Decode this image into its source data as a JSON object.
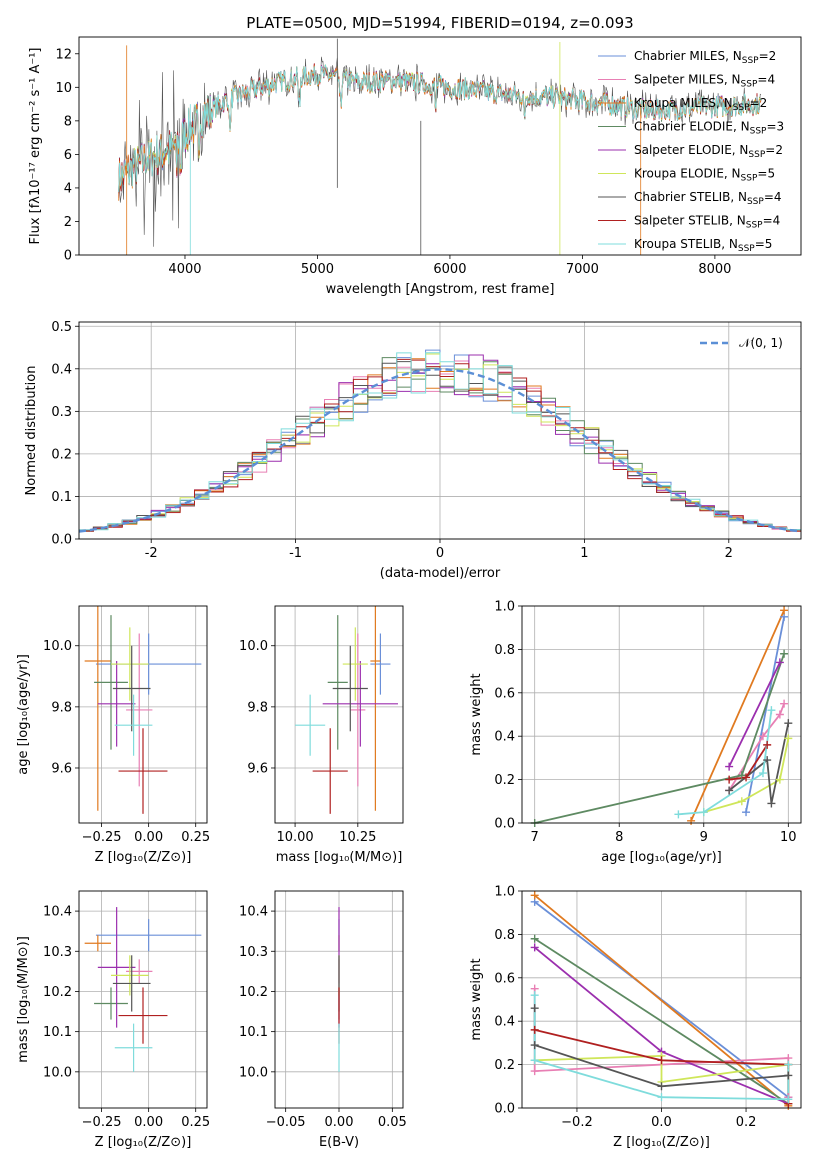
{
  "colors": {
    "Chabrier MILES": "#6a8fd8",
    "Salpeter MILES": "#e87fb4",
    "Kroupa MILES": "#e07a20",
    "Chabrier ELODIE": "#5e8a62",
    "Salpeter ELODIE": "#9b2fae",
    "Kroupa ELODIE": "#cfe65a",
    "Chabrier STELIB": "#555555",
    "Salpeter STELIB": "#b02020",
    "Kroupa STELIB": "#7fdcdc",
    "grid": "#b0b0b0",
    "normal_curve": "#5b8fd6"
  },
  "chart_data": [
    {
      "type": "line",
      "title": "PLATE=0500, MJD=51994, FIBERID=0194, z=0.093",
      "xlabel": "wavelength [Angstrom, rest frame]",
      "ylabel": "Flux [fλ10⁻¹⁷ erg cm⁻² s⁻¹ A⁻¹]",
      "xlim": [
        3200,
        8650
      ],
      "ylim": [
        0,
        13
      ],
      "xticks": [
        4000,
        5000,
        6000,
        7000,
        8000
      ],
      "yticks": [
        0,
        2,
        4,
        6,
        8,
        10,
        12
      ],
      "grid": false,
      "legend": "top-right",
      "continuum": {
        "x": [
          3500,
          3700,
          3900,
          4000,
          4100,
          4300,
          4500,
          4700,
          5000,
          5300,
          5600,
          6000,
          6400,
          6800,
          7200,
          7500,
          7900,
          8300
        ],
        "y": [
          4.6,
          5.7,
          6.3,
          7.2,
          8.0,
          9.2,
          9.8,
          10.3,
          10.8,
          10.3,
          10.4,
          10.0,
          9.6,
          9.4,
          9.0,
          8.6,
          8.8,
          9.0
        ]
      },
      "series": [
        {
          "name": "Chabrier MILES, N_SSP=2",
          "label": "Chabrier MILES, N",
          "sub": "SSP",
          "suffix": "=2"
        },
        {
          "name": "Salpeter MILES, N_SSP=4",
          "label": "Salpeter MILES, N",
          "sub": "SSP",
          "suffix": "=4"
        },
        {
          "name": "Kroupa MILES, N_SSP=2",
          "label": "Kroupa MILES, N",
          "sub": "SSP",
          "suffix": "=2"
        },
        {
          "name": "Chabrier ELODIE, N_SSP=3",
          "label": "Chabrier ELODIE, N",
          "sub": "SSP",
          "suffix": "=3"
        },
        {
          "name": "Salpeter ELODIE, N_SSP=2",
          "label": "Salpeter ELODIE, N",
          "sub": "SSP",
          "suffix": "=2"
        },
        {
          "name": "Kroupa ELODIE, N_SSP=5",
          "label": "Kroupa ELODIE, N",
          "sub": "SSP",
          "suffix": "=5"
        },
        {
          "name": "Chabrier STELIB, N_SSP=4",
          "label": "Chabrier STELIB, N",
          "sub": "SSP",
          "suffix": "=4"
        },
        {
          "name": "Salpeter STELIB, N_SSP=4",
          "label": "Salpeter STELIB, N",
          "sub": "SSP",
          "suffix": "=4"
        },
        {
          "name": "Kroupa STELIB, N_SSP=5",
          "label": "Kroupa STELIB, N",
          "sub": "SSP",
          "suffix": "=5"
        }
      ]
    },
    {
      "type": "histogram",
      "xlabel": "(data-model)/error",
      "ylabel": "Normed distribution",
      "xlim": [
        -2.5,
        2.5
      ],
      "ylim": [
        0,
        0.51
      ],
      "xticks": [
        -2,
        -1,
        0,
        1,
        2
      ],
      "yticks": [
        0.0,
        0.1,
        0.2,
        0.3,
        0.4,
        0.5
      ],
      "grid": true,
      "legend": "top-right",
      "legend_label": "𝒩(0, 1)",
      "bin_width": 0.1,
      "bins_start": -2.5,
      "reference_curve": "normal(0,1)"
    },
    {
      "type": "errorbar",
      "xlabel": "Z [log₁₀(Z/Z⊙)]",
      "ylabel": "age  [log₁₀(age/yr)]",
      "xlim": [
        -0.37,
        0.31
      ],
      "ylim": [
        9.42,
        10.13
      ],
      "xticks": [
        -0.25,
        0.0,
        0.25
      ],
      "xtick_labels": [
        "−0.25",
        "0.00",
        "0.25"
      ],
      "yticks": [
        9.6,
        9.8,
        10.0
      ],
      "grid": true,
      "points": [
        {
          "x": 0.0,
          "xerr": 0.28,
          "y": 9.94,
          "yerr": 0.1
        },
        {
          "x": -0.05,
          "xerr": 0.07,
          "y": 9.79,
          "yerr": 0.25
        },
        {
          "x": -0.27,
          "xerr": 0.07,
          "y": 9.95,
          "yerr": 0.49
        },
        {
          "x": -0.2,
          "xerr": 0.09,
          "y": 9.88,
          "yerr": 0.22
        },
        {
          "x": -0.17,
          "xerr": 0.1,
          "y": 9.81,
          "yerr": 0.14
        },
        {
          "x": -0.1,
          "xerr": 0.1,
          "y": 9.94,
          "yerr": 0.12
        },
        {
          "x": -0.09,
          "xerr": 0.1,
          "y": 9.86,
          "yerr": 0.14
        },
        {
          "x": -0.03,
          "xerr": 0.13,
          "y": 9.59,
          "yerr": 0.14
        },
        {
          "x": -0.08,
          "xerr": 0.1,
          "y": 9.74,
          "yerr": 0.1
        }
      ]
    },
    {
      "type": "errorbar",
      "xlabel": "mass [log₁₀(M/M⊙)]",
      "xlim": [
        9.92,
        10.43
      ],
      "ylim": [
        9.42,
        10.13
      ],
      "xticks": [
        10.0,
        10.25
      ],
      "xtick_labels": [
        "10.00",
        "10.25"
      ],
      "yticks": [
        9.6,
        9.8,
        10.0
      ],
      "grid": true,
      "points": [
        {
          "x": 10.34,
          "xerr": 0.04,
          "y": 9.94,
          "yerr": 0.1
        },
        {
          "x": 10.25,
          "xerr": 0.03,
          "y": 9.79,
          "yerr": 0.25
        },
        {
          "x": 10.32,
          "xerr": 0.02,
          "y": 9.95,
          "yerr": 0.49
        },
        {
          "x": 10.17,
          "xerr": 0.04,
          "y": 9.88,
          "yerr": 0.22
        },
        {
          "x": 10.26,
          "xerr": 0.15,
          "y": 9.81,
          "yerr": 0.14
        },
        {
          "x": 10.24,
          "xerr": 0.05,
          "y": 9.94,
          "yerr": 0.12
        },
        {
          "x": 10.22,
          "xerr": 0.07,
          "y": 9.86,
          "yerr": 0.14
        },
        {
          "x": 10.14,
          "xerr": 0.07,
          "y": 9.59,
          "yerr": 0.14
        },
        {
          "x": 10.06,
          "xerr": 0.06,
          "y": 9.74,
          "yerr": 0.1
        }
      ]
    },
    {
      "type": "line",
      "xlabel": "age  [log₁₀(age/yr)]",
      "ylabel": "mass weight",
      "xlim": [
        6.85,
        10.15
      ],
      "ylim": [
        0,
        1.0
      ],
      "xticks": [
        7,
        8,
        9,
        10
      ],
      "yticks": [
        0.0,
        0.2,
        0.4,
        0.6,
        0.8,
        1.0
      ],
      "grid": true,
      "marker": "+",
      "series": [
        {
          "x": [
            9.5,
            9.95
          ],
          "y": [
            0.05,
            0.95
          ]
        },
        {
          "x": [
            9.3,
            9.7,
            9.9,
            9.95
          ],
          "y": [
            0.15,
            0.4,
            0.5,
            0.55
          ]
        },
        {
          "x": [
            8.85,
            9.95
          ],
          "y": [
            0.01,
            0.98
          ]
        },
        {
          "x": [
            7.0,
            9.45,
            9.95
          ],
          "y": [
            0.0,
            0.22,
            0.78
          ]
        },
        {
          "x": [
            9.3,
            9.9
          ],
          "y": [
            0.26,
            0.74
          ]
        },
        {
          "x": [
            9.0,
            9.45,
            9.9,
            10.0
          ],
          "y": [
            0.05,
            0.1,
            0.2,
            0.39
          ]
        },
        {
          "x": [
            9.3,
            9.75,
            9.8,
            10.0
          ],
          "y": [
            0.15,
            0.29,
            0.09,
            0.46
          ]
        },
        {
          "x": [
            9.3,
            9.5,
            9.75
          ],
          "y": [
            0.2,
            0.21,
            0.36
          ]
        },
        {
          "x": [
            8.7,
            9.0,
            9.7,
            9.8
          ],
          "y": [
            0.04,
            0.05,
            0.23,
            0.52
          ]
        }
      ]
    },
    {
      "type": "errorbar",
      "xlabel": "Z [log₁₀(Z/Z⊙)]",
      "ylabel": "mass [log₁₀(M/M⊙)]",
      "xlim": [
        -0.37,
        0.31
      ],
      "ylim": [
        9.91,
        10.45
      ],
      "xticks": [
        -0.25,
        0.0,
        0.25
      ],
      "xtick_labels": [
        "−0.25",
        "0.00",
        "0.25"
      ],
      "yticks": [
        10.0,
        10.1,
        10.2,
        10.3,
        10.4
      ],
      "grid": true,
      "points": [
        {
          "x": 0.0,
          "xerr": 0.28,
          "y": 10.34,
          "yerr": 0.04
        },
        {
          "x": -0.05,
          "xerr": 0.07,
          "y": 10.25,
          "yerr": 0.03
        },
        {
          "x": -0.27,
          "xerr": 0.07,
          "y": 10.32,
          "yerr": 0.02
        },
        {
          "x": -0.2,
          "xerr": 0.09,
          "y": 10.17,
          "yerr": 0.04
        },
        {
          "x": -0.17,
          "xerr": 0.1,
          "y": 10.26,
          "yerr": 0.15
        },
        {
          "x": -0.1,
          "xerr": 0.1,
          "y": 10.24,
          "yerr": 0.05
        },
        {
          "x": -0.09,
          "xerr": 0.1,
          "y": 10.22,
          "yerr": 0.07
        },
        {
          "x": -0.03,
          "xerr": 0.13,
          "y": 10.14,
          "yerr": 0.07
        },
        {
          "x": -0.08,
          "xerr": 0.1,
          "y": 10.06,
          "yerr": 0.06
        }
      ]
    },
    {
      "type": "errorbar",
      "xlabel": "E(B-V)",
      "xlim": [
        -0.06,
        0.06
      ],
      "ylim": [
        9.91,
        10.45
      ],
      "xticks": [
        -0.05,
        0.0,
        0.05
      ],
      "xtick_labels": [
        "−0.05",
        "0.00",
        "0.05"
      ],
      "yticks": [
        10.0,
        10.1,
        10.2,
        10.3,
        10.4
      ],
      "grid": true,
      "points": [
        {
          "x": 0.0,
          "xerr": 0.0,
          "y": 10.34,
          "yerr": 0.04
        },
        {
          "x": 0.0,
          "xerr": 0.0,
          "y": 10.25,
          "yerr": 0.03
        },
        {
          "x": 0.0,
          "xerr": 0.0,
          "y": 10.32,
          "yerr": 0.02
        },
        {
          "x": 0.0,
          "xerr": 0.0,
          "y": 10.17,
          "yerr": 0.04
        },
        {
          "x": 0.0,
          "xerr": 0.0,
          "y": 10.26,
          "yerr": 0.15
        },
        {
          "x": 0.0,
          "xerr": 0.0,
          "y": 10.24,
          "yerr": 0.05
        },
        {
          "x": 0.0,
          "xerr": 0.0,
          "y": 10.22,
          "yerr": 0.07
        },
        {
          "x": 0.0,
          "xerr": 0.0,
          "y": 10.14,
          "yerr": 0.07
        },
        {
          "x": 0.0,
          "xerr": 0.0,
          "y": 10.06,
          "yerr": 0.06
        }
      ]
    },
    {
      "type": "line",
      "xlabel": "Z [log₁₀(Z/Z⊙)]",
      "ylabel": "mass weight",
      "xlim": [
        -0.33,
        0.33
      ],
      "ylim": [
        0,
        1.0
      ],
      "xticks": [
        -0.2,
        0.0,
        0.2
      ],
      "xtick_labels": [
        "−0.2",
        "0.0",
        "0.2"
      ],
      "yticks": [
        0.0,
        0.2,
        0.4,
        0.6,
        0.8,
        1.0
      ],
      "grid": true,
      "marker": "+",
      "series": [
        {
          "x": [
            -0.3,
            0.3
          ],
          "y": [
            0.95,
            0.05
          ]
        },
        {
          "x": [
            -0.3,
            -0.3,
            0.3,
            0.3
          ],
          "y": [
            0.55,
            0.17,
            0.23,
            0.05
          ]
        },
        {
          "x": [
            -0.3,
            0.3
          ],
          "y": [
            0.98,
            0.01
          ]
        },
        {
          "x": [
            -0.3,
            0.3
          ],
          "y": [
            0.78,
            0.02
          ]
        },
        {
          "x": [
            -0.3,
            0.0,
            0.3
          ],
          "y": [
            0.74,
            0.26,
            0.02
          ]
        },
        {
          "x": [
            -0.3,
            0.0,
            0.0,
            0.3,
            0.3
          ],
          "y": [
            0.22,
            0.24,
            0.12,
            0.2,
            0.02
          ]
        },
        {
          "x": [
            -0.3,
            -0.3,
            0.0,
            0.3
          ],
          "y": [
            0.46,
            0.29,
            0.1,
            0.15
          ]
        },
        {
          "x": [
            -0.3,
            0.0,
            0.3,
            0.3
          ],
          "y": [
            0.36,
            0.22,
            0.2,
            0.02
          ]
        },
        {
          "x": [
            -0.3,
            -0.3,
            0.0,
            0.3,
            0.3
          ],
          "y": [
            0.52,
            0.22,
            0.05,
            0.04,
            0.2
          ]
        }
      ]
    }
  ]
}
